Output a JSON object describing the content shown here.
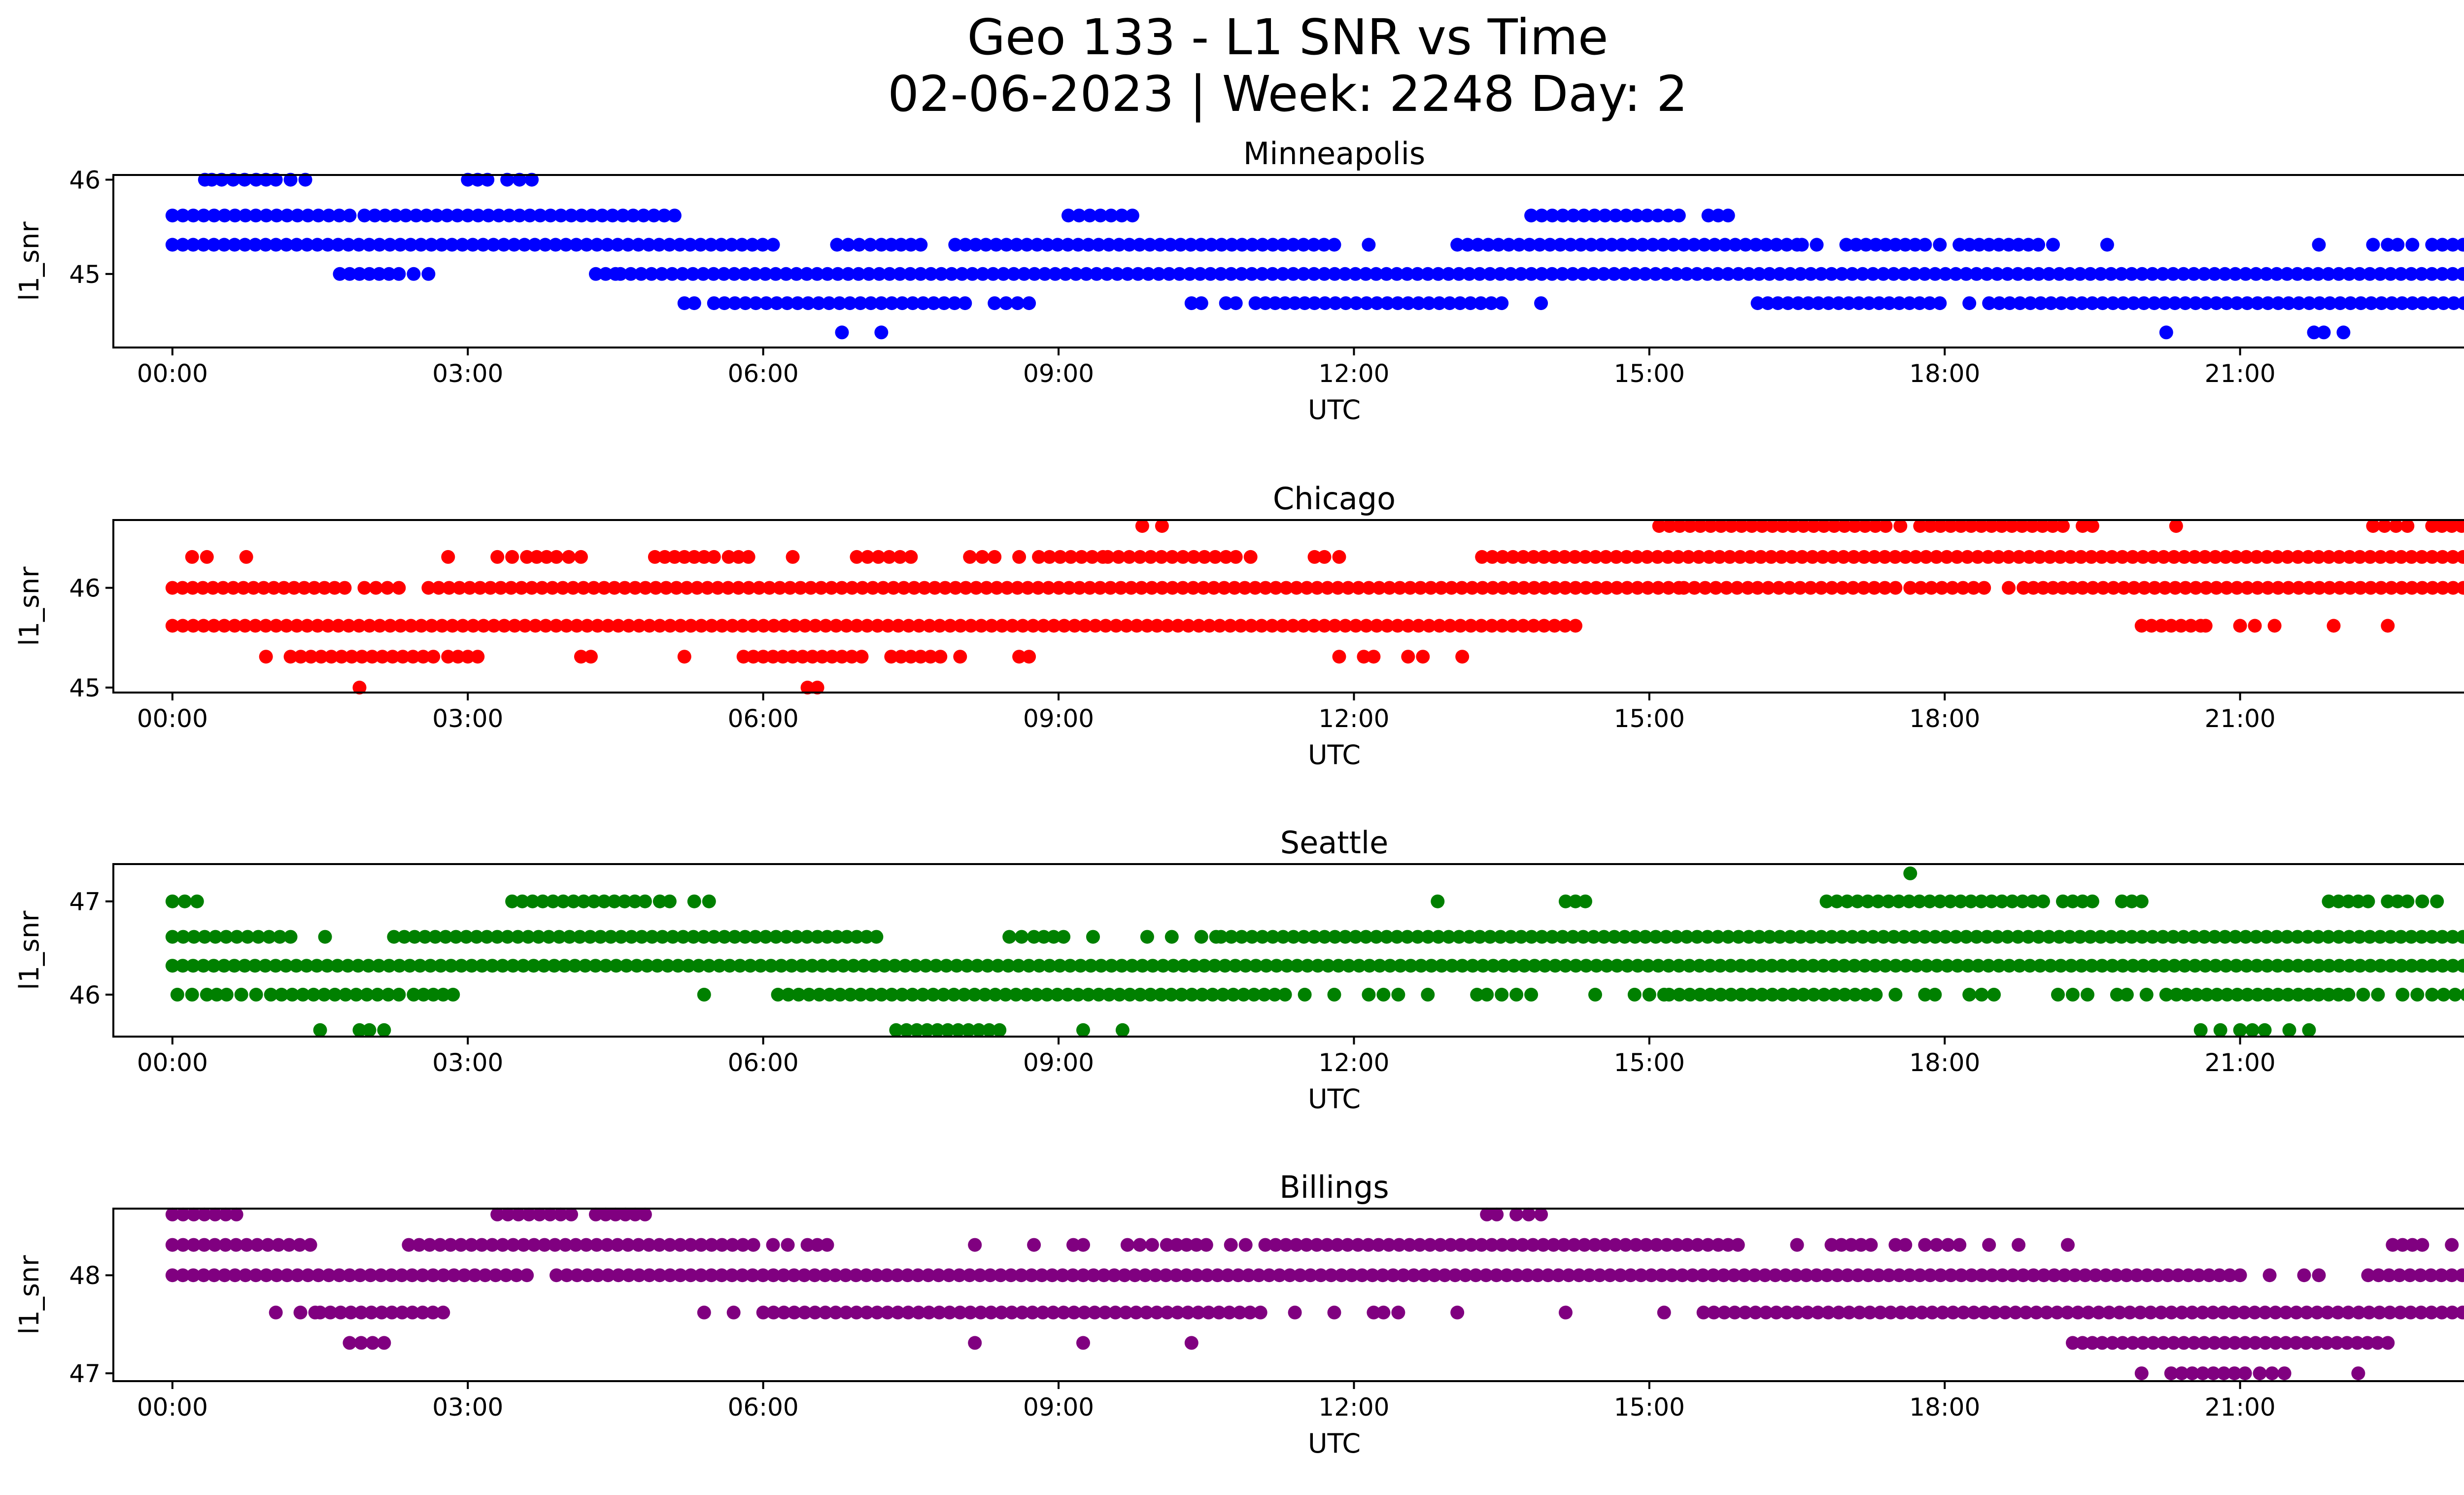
{
  "figure": {
    "title_line1": "Geo 133 - L1 SNR vs Time",
    "title_line2": "02-06-2023 | Week: 2248 Day: 2"
  },
  "chart_data": [
    {
      "type": "scatter",
      "title": "Minneapolis",
      "xlabel": "UTC",
      "ylabel": "l1_snr",
      "color": "#0000ff",
      "x_ticks": [
        "00:00",
        "03:00",
        "06:00",
        "09:00",
        "12:00",
        "15:00",
        "18:00",
        "21:00",
        "00:00"
      ],
      "y_ticks": [
        45,
        46
      ],
      "xlim": [
        -0.6,
        24.2
      ],
      "ylim": [
        44.22,
        46.05
      ],
      "levels": [
        {
          "y": 46.0,
          "segments": [
            [
              0.33,
              0.4
            ],
            [
              0.5,
              0.85
            ],
            [
              0.95,
              1.05
            ],
            [
              1.2,
              1.35
            ],
            [
              3.0,
              3.2
            ],
            [
              3.4,
              3.65
            ]
          ]
        },
        {
          "y": 45.62,
          "segments": [
            [
              0.0,
              1.8
            ],
            [
              1.95,
              5.1
            ],
            [
              9.1,
              9.75
            ],
            [
              13.8,
              15.3
            ],
            [
              15.6,
              15.8
            ]
          ]
        },
        {
          "y": 45.31,
          "segments": [
            [
              0.0,
              6.1
            ],
            [
              6.75,
              7.2
            ],
            [
              7.3,
              7.6
            ],
            [
              7.95,
              11.8
            ],
            [
              12.15,
              12.15
            ],
            [
              13.05,
              16.5
            ],
            [
              16.55,
              16.7
            ],
            [
              17.0,
              17.8
            ],
            [
              17.95,
              17.95
            ],
            [
              18.15,
              18.95
            ],
            [
              19.1,
              19.1
            ],
            [
              19.65,
              19.65
            ],
            [
              21.8,
              21.8
            ],
            [
              22.35,
              22.5
            ],
            [
              22.6,
              22.75
            ],
            [
              22.95,
              24.0
            ]
          ]
        },
        {
          "y": 45.0,
          "segments": [
            [
              1.7,
              2.3
            ],
            [
              2.45,
              2.6
            ],
            [
              4.3,
              4.5
            ],
            [
              4.55,
              24.0
            ]
          ]
        },
        {
          "y": 44.69,
          "segments": [
            [
              5.2,
              5.3
            ],
            [
              5.5,
              8.05
            ],
            [
              8.35,
              8.7
            ],
            [
              10.35,
              10.45
            ],
            [
              10.7,
              10.8
            ],
            [
              11.0,
              11.5
            ],
            [
              11.6,
              13.5
            ],
            [
              13.9,
              13.9
            ],
            [
              16.1,
              17.95
            ],
            [
              18.25,
              18.3
            ],
            [
              18.45,
              23.8
            ],
            [
              23.9,
              24.0
            ]
          ]
        },
        {
          "y": 44.38,
          "segments": [
            [
              6.8,
              6.8
            ],
            [
              7.2,
              7.2
            ],
            [
              20.25,
              20.25
            ],
            [
              21.75,
              21.85
            ],
            [
              22.05,
              22.05
            ]
          ]
        }
      ]
    },
    {
      "type": "scatter",
      "title": "Chicago",
      "xlabel": "UTC",
      "ylabel": "l1_snr",
      "color": "#ff0000",
      "x_ticks": [
        "00:00",
        "03:00",
        "06:00",
        "09:00",
        "12:00",
        "15:00",
        "18:00",
        "21:00",
        "00:00"
      ],
      "y_ticks": [
        45,
        46
      ],
      "xlim": [
        -0.6,
        24.2
      ],
      "ylim": [
        44.95,
        46.68
      ],
      "levels": [
        {
          "y": 46.62,
          "segments": [
            [
              9.85,
              9.85
            ],
            [
              10.05,
              10.05
            ],
            [
              15.1,
              17.4
            ],
            [
              17.55,
              17.55
            ],
            [
              17.75,
              19.2
            ],
            [
              19.4,
              19.5
            ],
            [
              20.35,
              20.35
            ],
            [
              22.35,
              22.7
            ],
            [
              22.95,
              23.85
            ]
          ]
        },
        {
          "y": 46.31,
          "segments": [
            [
              0.2,
              0.35
            ],
            [
              0.75,
              0.75
            ],
            [
              2.8,
              2.8
            ],
            [
              3.3,
              3.45
            ],
            [
              3.6,
              3.8
            ],
            [
              3.9,
              4.15
            ],
            [
              4.9,
              5.5
            ],
            [
              5.65,
              5.85
            ],
            [
              6.3,
              6.3
            ],
            [
              6.95,
              7.5
            ],
            [
              8.1,
              8.35
            ],
            [
              8.6,
              8.6
            ],
            [
              8.8,
              9.45
            ],
            [
              9.5,
              10.7
            ],
            [
              10.8,
              10.95
            ],
            [
              11.6,
              11.7
            ],
            [
              11.85,
              11.85
            ],
            [
              13.3,
              24.0
            ]
          ]
        },
        {
          "y": 46.0,
          "segments": [
            [
              0.0,
              1.75
            ],
            [
              1.95,
              2.3
            ],
            [
              2.6,
              15.3
            ],
            [
              15.35,
              16.0
            ],
            [
              16.1,
              17.5
            ],
            [
              17.65,
              18.4
            ],
            [
              18.65,
              18.8
            ],
            [
              18.9,
              19.3
            ],
            [
              19.4,
              24.0
            ]
          ]
        },
        {
          "y": 45.62,
          "segments": [
            [
              0.0,
              9.9
            ],
            [
              10.0,
              14.25
            ],
            [
              20.0,
              20.6
            ],
            [
              20.65,
              20.65
            ],
            [
              21.0,
              21.15
            ],
            [
              21.35,
              21.35
            ],
            [
              21.95,
              21.95
            ],
            [
              22.5,
              22.5
            ]
          ]
        },
        {
          "y": 45.31,
          "segments": [
            [
              0.95,
              0.95
            ],
            [
              1.2,
              2.65
            ],
            [
              2.8,
              3.1
            ],
            [
              4.15,
              4.25
            ],
            [
              5.2,
              5.2
            ],
            [
              5.8,
              6.8
            ],
            [
              6.9,
              7.0
            ],
            [
              7.3,
              7.8
            ],
            [
              8.0,
              8.0
            ],
            [
              8.6,
              8.7
            ],
            [
              11.85,
              11.85
            ],
            [
              12.1,
              12.2
            ],
            [
              12.55,
              12.7
            ],
            [
              13.1,
              13.1
            ]
          ]
        },
        {
          "y": 45.0,
          "segments": [
            [
              1.9,
              1.9
            ],
            [
              6.45,
              6.55
            ]
          ]
        }
      ]
    },
    {
      "type": "scatter",
      "title": "Seattle",
      "xlabel": "UTC",
      "ylabel": "l1_snr",
      "color": "#008000",
      "x_ticks": [
        "00:00",
        "03:00",
        "06:00",
        "09:00",
        "12:00",
        "15:00",
        "18:00",
        "21:00",
        "00:00"
      ],
      "y_ticks": [
        46,
        47
      ],
      "xlim": [
        -0.6,
        24.2
      ],
      "ylim": [
        45.55,
        47.4
      ],
      "levels": [
        {
          "y": 47.3,
          "segments": [
            [
              17.65,
              17.65
            ]
          ]
        },
        {
          "y": 47.0,
          "segments": [
            [
              0.0,
              0.25
            ],
            [
              3.45,
              4.8
            ],
            [
              4.95,
              5.05
            ],
            [
              5.3,
              5.45
            ],
            [
              12.85,
              12.85
            ],
            [
              14.15,
              14.35
            ],
            [
              16.8,
              19.0
            ],
            [
              19.2,
              19.5
            ],
            [
              19.8,
              20.0
            ],
            [
              21.9,
              22.3
            ],
            [
              22.5,
              22.7
            ],
            [
              22.85,
              23.0
            ],
            [
              23.7,
              23.7
            ]
          ]
        },
        {
          "y": 46.62,
          "segments": [
            [
              0.0,
              1.2
            ],
            [
              1.55,
              1.55
            ],
            [
              2.25,
              6.55
            ],
            [
              6.65,
              6.85
            ],
            [
              6.95,
              7.15
            ],
            [
              8.5,
              8.75
            ],
            [
              8.85,
              9.05
            ],
            [
              9.35,
              9.35
            ],
            [
              9.9,
              9.9
            ],
            [
              10.15,
              10.15
            ],
            [
              10.45,
              10.6
            ],
            [
              10.65,
              24.0
            ]
          ]
        },
        {
          "y": 46.31,
          "segments": [
            [
              0.0,
              24.0
            ]
          ]
        },
        {
          "y": 46.0,
          "segments": [
            [
              0.05,
              0.2
            ],
            [
              0.35,
              0.55
            ],
            [
              0.7,
              0.85
            ],
            [
              1.0,
              2.3
            ],
            [
              2.45,
              2.85
            ],
            [
              5.4,
              5.4
            ],
            [
              6.15,
              11.3
            ],
            [
              11.5,
              11.5
            ],
            [
              11.8,
              11.8
            ],
            [
              12.15,
              12.3
            ],
            [
              12.45,
              12.45
            ],
            [
              12.75,
              12.75
            ],
            [
              13.25,
              13.35
            ],
            [
              13.5,
              13.65
            ],
            [
              13.8,
              13.8
            ],
            [
              14.45,
              14.45
            ],
            [
              14.85,
              14.9
            ],
            [
              15.0,
              15.15
            ],
            [
              15.2,
              17.3
            ],
            [
              17.5,
              17.5
            ],
            [
              17.8,
              17.9
            ],
            [
              18.25,
              18.5
            ],
            [
              19.15,
              19.3
            ],
            [
              19.45,
              19.5
            ],
            [
              19.75,
              19.85
            ],
            [
              20.05,
              20.1
            ],
            [
              20.25,
              21.9
            ],
            [
              22.0,
              22.1
            ],
            [
              22.25,
              22.4
            ],
            [
              22.65,
              22.8
            ],
            [
              22.95,
              23.3
            ],
            [
              23.45,
              24.0
            ]
          ]
        },
        {
          "y": 45.62,
          "segments": [
            [
              1.5,
              1.5
            ],
            [
              1.9,
              2.0
            ],
            [
              2.15,
              2.15
            ],
            [
              7.35,
              8.4
            ],
            [
              9.25,
              9.25
            ],
            [
              9.65,
              9.65
            ],
            [
              20.6,
              20.6
            ],
            [
              20.8,
              20.85
            ],
            [
              21.0,
              21.25
            ],
            [
              21.5,
              21.5
            ],
            [
              21.7,
              21.7
            ]
          ]
        }
      ]
    },
    {
      "type": "scatter",
      "title": "Billings",
      "xlabel": "UTC",
      "ylabel": "l1_snr",
      "color": "#800080",
      "x_ticks": [
        "00:00",
        "03:00",
        "06:00",
        "09:00",
        "12:00",
        "15:00",
        "18:00",
        "21:00",
        "00:00"
      ],
      "y_ticks": [
        47,
        48
      ],
      "xlim": [
        -0.6,
        24.2
      ],
      "ylim": [
        46.92,
        48.68
      ],
      "levels": [
        {
          "y": 48.62,
          "segments": [
            [
              0.0,
              0.65
            ],
            [
              3.3,
              4.05
            ],
            [
              4.3,
              4.8
            ],
            [
              13.35,
              13.45
            ],
            [
              13.65,
              13.9
            ]
          ]
        },
        {
          "y": 48.31,
          "segments": [
            [
              0.0,
              1.4
            ],
            [
              2.4,
              5.9
            ],
            [
              6.1,
              6.25
            ],
            [
              6.45,
              6.65
            ],
            [
              8.15,
              8.15
            ],
            [
              8.75,
              8.8
            ],
            [
              9.15,
              9.25
            ],
            [
              9.7,
              9.95
            ],
            [
              10.1,
              10.5
            ],
            [
              10.75,
              10.9
            ],
            [
              11.1,
              15.7
            ],
            [
              15.8,
              15.9
            ],
            [
              16.5,
              16.5
            ],
            [
              16.85,
              17.25
            ],
            [
              17.5,
              17.6
            ],
            [
              17.8,
              18.15
            ],
            [
              18.45,
              18.45
            ],
            [
              18.75,
              18.8
            ],
            [
              19.25,
              19.25
            ],
            [
              22.55,
              22.85
            ],
            [
              23.15,
              23.2
            ]
          ]
        },
        {
          "y": 48.0,
          "segments": [
            [
              0.0,
              3.6
            ],
            [
              3.9,
              21.0
            ],
            [
              21.3,
              21.3
            ],
            [
              21.65,
              21.8
            ],
            [
              22.3,
              24.0
            ]
          ]
        },
        {
          "y": 47.62,
          "segments": [
            [
              1.05,
              1.1
            ],
            [
              1.3,
              1.45
            ],
            [
              1.5,
              2.75
            ],
            [
              5.4,
              5.4
            ],
            [
              5.7,
              5.75
            ],
            [
              6.0,
              11.05
            ],
            [
              11.4,
              11.4
            ],
            [
              11.8,
              11.8
            ],
            [
              12.2,
              12.3
            ],
            [
              12.45,
              12.45
            ],
            [
              13.05,
              13.05
            ],
            [
              14.15,
              14.15
            ],
            [
              15.15,
              15.15
            ],
            [
              15.55,
              24.0
            ]
          ]
        },
        {
          "y": 47.31,
          "segments": [
            [
              1.8,
              2.15
            ],
            [
              8.15,
              8.15
            ],
            [
              9.25,
              9.25
            ],
            [
              10.35,
              10.35
            ],
            [
              19.3,
              19.5
            ],
            [
              19.6,
              22.5
            ]
          ]
        },
        {
          "y": 47.0,
          "segments": [
            [
              20.0,
              20.0
            ],
            [
              20.3,
              21.05
            ],
            [
              21.2,
              21.45
            ],
            [
              22.2,
              22.2
            ]
          ]
        }
      ]
    }
  ]
}
